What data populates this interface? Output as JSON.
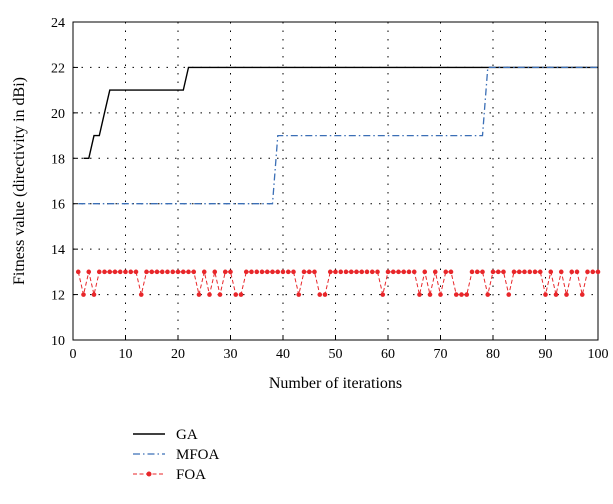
{
  "chart_data": {
    "type": "line",
    "title": "",
    "xlabel": "Number of iterations",
    "ylabel": "Fitness value (directivity in dBi)",
    "xlim": [
      0,
      100
    ],
    "ylim": [
      10,
      24
    ],
    "xticks": [
      0,
      10,
      20,
      30,
      40,
      50,
      60,
      70,
      80,
      90,
      100
    ],
    "yticks": [
      10,
      12,
      14,
      16,
      18,
      20,
      22,
      24
    ],
    "grid": "dotted",
    "legend": "below",
    "series": [
      {
        "name": "GA",
        "color": "#000000",
        "style": "solid",
        "x": [
          2,
          3,
          4,
          5,
          6,
          7,
          21,
          22,
          100
        ],
        "y": [
          18,
          18,
          19,
          19,
          20,
          21,
          21,
          22,
          22
        ]
      },
      {
        "name": "MFOA",
        "color": "#3b6fb6",
        "style": "dash-dot",
        "x": [
          1,
          21,
          22,
          38,
          39,
          78,
          79,
          100
        ],
        "y": [
          16,
          16,
          16,
          16,
          19,
          19,
          22,
          22
        ]
      },
      {
        "name": "FOA",
        "color": "#e8262a",
        "style": "dashed-marker",
        "x": [
          1,
          2,
          3,
          4,
          5,
          6,
          7,
          8,
          9,
          10,
          11,
          12,
          13,
          14,
          15,
          16,
          17,
          18,
          19,
          20,
          21,
          22,
          23,
          24,
          25,
          26,
          27,
          28,
          29,
          30,
          31,
          32,
          33,
          34,
          35,
          36,
          37,
          38,
          39,
          40,
          41,
          42,
          43,
          44,
          45,
          46,
          47,
          48,
          49,
          50,
          51,
          52,
          53,
          54,
          55,
          56,
          57,
          58,
          59,
          60,
          61,
          62,
          63,
          64,
          65,
          66,
          67,
          68,
          69,
          70,
          71,
          72,
          73,
          74,
          75,
          76,
          77,
          78,
          79,
          80,
          81,
          82,
          83,
          84,
          85,
          86,
          87,
          88,
          89,
          90,
          91,
          92,
          93,
          94,
          95,
          96,
          97,
          98,
          99,
          100
        ],
        "y": [
          13,
          12,
          13,
          12,
          13,
          13,
          13,
          13,
          13,
          13,
          13,
          13,
          12,
          13,
          13,
          13,
          13,
          13,
          13,
          13,
          13,
          13,
          13,
          12,
          13,
          12,
          13,
          12,
          13,
          13,
          12,
          12,
          13,
          13,
          13,
          13,
          13,
          13,
          13,
          13,
          13,
          13,
          12,
          13,
          13,
          13,
          12,
          12,
          13,
          13,
          13,
          13,
          13,
          13,
          13,
          13,
          13,
          13,
          12,
          13,
          13,
          13,
          13,
          13,
          13,
          12,
          13,
          12,
          13,
          12,
          13,
          13,
          12,
          12,
          12,
          13,
          13,
          13,
          12,
          13,
          13,
          13,
          12,
          13,
          13,
          13,
          13,
          13,
          13,
          12,
          13,
          12,
          13,
          12,
          13,
          13,
          12,
          13,
          13,
          13
        ]
      }
    ]
  }
}
